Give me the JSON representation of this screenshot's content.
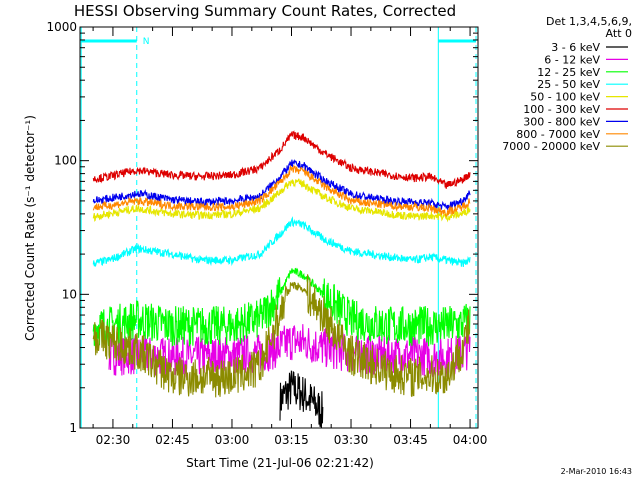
{
  "chart_data": {
    "type": "line",
    "title": "HESSI Observing Summary Count Rates, Corrected",
    "xlabel": "Start Time (21-Jul-06 02:21:42)",
    "ylabel": "Corrected Count Rate (s⁻¹ detector⁻¹)",
    "yscale": "log",
    "ylim": [
      1,
      1000
    ],
    "xlim_minutes": [
      21.7,
      122
    ],
    "x_ticks": [
      "02:30",
      "02:45",
      "03:00",
      "03:15",
      "03:30",
      "03:45",
      "04:00"
    ],
    "y_ticks": [
      "1",
      "10",
      "100",
      "1000"
    ],
    "grid": false,
    "legend_position": "top-right",
    "legend_header": [
      "Det 1,3,4,5,6,9,",
      "Att 0"
    ],
    "night_marker": "N",
    "footer": "2-Mar-2010 16:43",
    "x_minutes": [
      25,
      29,
      36,
      45,
      52,
      60,
      67,
      72,
      75,
      78,
      83,
      90,
      100,
      106,
      110,
      114,
      118,
      120
    ],
    "series": [
      {
        "name": "3 - 6 keV",
        "color": "#000000",
        "values": [
          null,
          null,
          null,
          null,
          null,
          null,
          null,
          1.6,
          2.0,
          1.8,
          1.3,
          null,
          null,
          null,
          null,
          null,
          null,
          null
        ]
      },
      {
        "name": "6 - 12 keV",
        "color": "#e600e6",
        "values": [
          null,
          3.5,
          3.5,
          3.4,
          3.4,
          3.5,
          3.6,
          4.0,
          4.5,
          4.4,
          4.0,
          3.6,
          3.5,
          3.5,
          3.4,
          3.4,
          3.6,
          4.0
        ]
      },
      {
        "name": "12 - 25 keV",
        "color": "#00ff00",
        "values": [
          5.8,
          5.8,
          6.5,
          5.8,
          5.8,
          5.8,
          6.5,
          10,
          15,
          14,
          10,
          6.5,
          5.8,
          5.8,
          5.8,
          5.8,
          6.0,
          6.5
        ]
      },
      {
        "name": "25 - 50 keV",
        "color": "#00ffff",
        "values": [
          17,
          18,
          22,
          20,
          18,
          18,
          20,
          28,
          35,
          33,
          26,
          21,
          19,
          18,
          19,
          18,
          17,
          18
        ]
      },
      {
        "name": "50 - 100 keV",
        "color": "#e6e600",
        "values": [
          38,
          40,
          44,
          40,
          39,
          40,
          44,
          58,
          70,
          67,
          54,
          44,
          40,
          38,
          39,
          38,
          40,
          44
        ]
      },
      {
        "name": "100 - 300 keV",
        "color": "#dd0000",
        "values": [
          73,
          76,
          85,
          78,
          76,
          78,
          88,
          120,
          155,
          150,
          115,
          88,
          78,
          74,
          76,
          65,
          72,
          80
        ]
      },
      {
        "name": "300 - 800 keV",
        "color": "#0000ee",
        "values": [
          50,
          52,
          57,
          51,
          49,
          50,
          54,
          75,
          95,
          92,
          72,
          56,
          50,
          49,
          48,
          45,
          50,
          58
        ]
      },
      {
        "name": "800 - 7000 keV",
        "color": "#ff8800",
        "values": [
          45,
          46,
          50,
          46,
          45,
          45,
          50,
          68,
          86,
          83,
          65,
          50,
          46,
          45,
          44,
          41,
          45,
          50
        ]
      },
      {
        "name": "7000 - 20000 keV",
        "color": "#8b8b00",
        "values": [
          5.0,
          4.5,
          3.8,
          2.4,
          2.4,
          2.4,
          2.8,
          7.0,
          12,
          11,
          7.0,
          3.5,
          2.6,
          2.4,
          2.5,
          2.4,
          4.0,
          6.0
        ]
      }
    ],
    "night_intervals_minutes": [
      [
        22,
        36
      ],
      [
        112,
        121.5
      ]
    ]
  }
}
